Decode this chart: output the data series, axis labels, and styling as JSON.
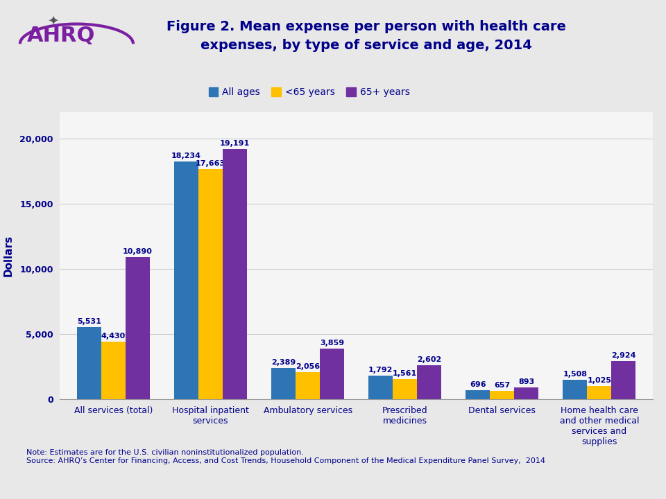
{
  "title": "Figure 2. Mean expense per person with health care\nexpenses, by type of service and age, 2014",
  "ylabel": "Dollars",
  "categories": [
    "All services (total)",
    "Hospital inpatient\nservices",
    "Ambulatory services",
    "Prescribed\nmedicines",
    "Dental services",
    "Home health care\nand other medical\nservices and\nsupplies"
  ],
  "series": {
    "All ages": [
      5531,
      18234,
      2389,
      1792,
      696,
      1508
    ],
    "<65 years": [
      4430,
      17663,
      2056,
      1561,
      657,
      1025
    ],
    "65+ years": [
      10890,
      19191,
      3859,
      2602,
      893,
      2924
    ]
  },
  "colors": {
    "All ages": "#2E75B6",
    "<65 years": "#FFC000",
    "65+ years": "#7030A0"
  },
  "ylim": [
    0,
    22000
  ],
  "yticks": [
    0,
    5000,
    10000,
    15000,
    20000
  ],
  "ytick_labels": [
    "0",
    "5,000",
    "10,000",
    "15,000",
    "20,000"
  ],
  "background_color": "#E8E8E8",
  "chart_bg_color": "#F5F5F5",
  "title_color": "#00008B",
  "label_color": "#00008B",
  "axis_label_color": "#00008B",
  "note_text": "Note: Estimates are for the U.S. civilian noninstitutionalized population.\nSource: AHRQ’s Center for Financing, Access, and Cost Trends, Household Component of the Medical Expenditure Panel Survey,  2014",
  "legend_labels": [
    "All ages",
    "<65 years",
    "65+ years"
  ],
  "bar_width": 0.25,
  "title_fontsize": 14,
  "label_fontsize": 8,
  "tick_fontsize": 9,
  "note_fontsize": 8,
  "separator_color": "#AAAAAA",
  "ahrq_text": "AHRQ",
  "ahrq_color": "#7B1FA2"
}
